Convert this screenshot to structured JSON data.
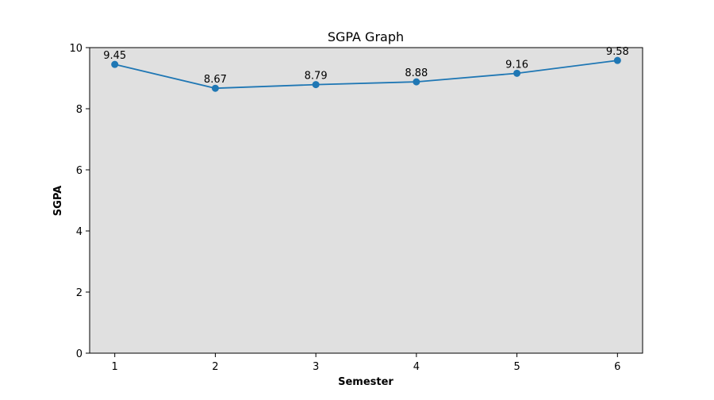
{
  "chart_data": {
    "type": "line",
    "title": "SGPA Graph",
    "xlabel": "Semester",
    "ylabel": "SGPA",
    "x": [
      1,
      2,
      3,
      4,
      5,
      6
    ],
    "series": [
      {
        "values": [
          9.45,
          8.67,
          8.79,
          8.88,
          9.16,
          9.58
        ],
        "color": "#1f77b4"
      }
    ],
    "data_labels": [
      "9.45",
      "8.67",
      "8.79",
      "8.88",
      "9.16",
      "9.58"
    ],
    "xlim": [
      0.75,
      6.25
    ],
    "ylim": [
      0,
      10
    ],
    "x_ticks": [
      1,
      2,
      3,
      4,
      5,
      6
    ],
    "y_ticks": [
      0,
      2,
      4,
      6,
      8,
      10
    ],
    "plot_background": "#e0e0e0",
    "grid": false,
    "marker": "circle"
  }
}
